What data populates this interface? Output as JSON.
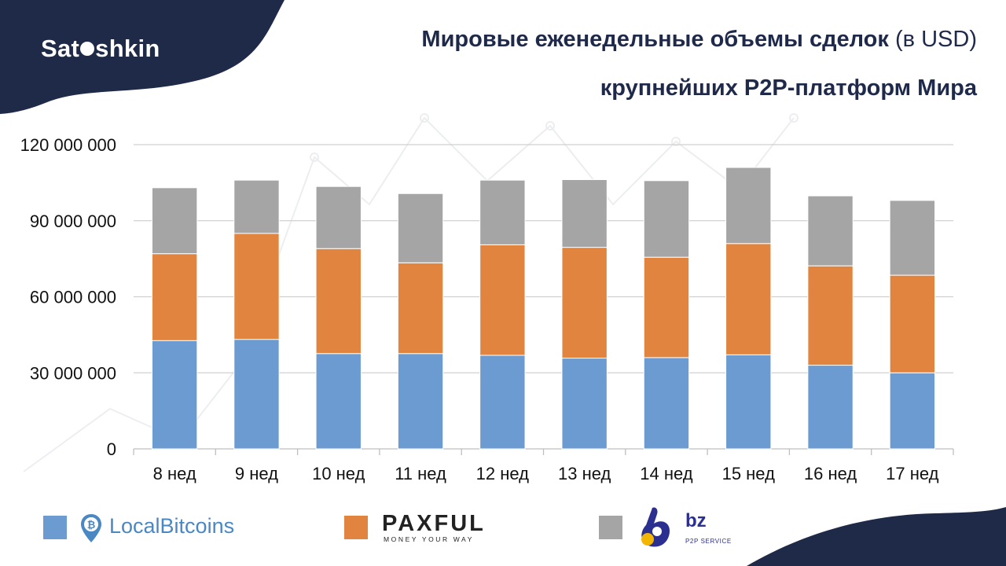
{
  "brand": {
    "text_before": "Sat",
    "text_after": "shkin",
    "color_dark": "#1e2a47"
  },
  "title": {
    "main": "Мировые еженедельные объемы сделок",
    "paren": "(в USD)",
    "line2": "крупнейших P2P-платформ Мира"
  },
  "legend": [
    {
      "color": "#6b9bd1",
      "label": "LocalBitcoins",
      "icon": "bitcoin-pin-icon"
    },
    {
      "color": "#e0843f",
      "label": "PAXFUL",
      "sub": "MONEY YOUR WAY",
      "icon": "paxful-logo"
    },
    {
      "color": "#a5a5a5",
      "label": "bz",
      "sub": "P2P SERVICE",
      "icon": "ok-hand-icon"
    }
  ],
  "chart_data": {
    "type": "bar",
    "stacked": true,
    "categories": [
      "8 нед",
      "9 нед",
      "10 нед",
      "11 нед",
      "12 нед",
      "13 нед",
      "14 нед",
      "15 нед",
      "16 нед",
      "17 нед"
    ],
    "series": [
      {
        "name": "LocalBitcoins",
        "color": "#6b9bd1",
        "values": [
          42700000,
          43200000,
          37600000,
          37600000,
          36900000,
          35800000,
          36000000,
          37100000,
          33000000,
          30000000
        ]
      },
      {
        "name": "PAXFUL",
        "color": "#e0843f",
        "values": [
          34300000,
          41800000,
          41400000,
          35800000,
          43600000,
          43700000,
          39600000,
          43900000,
          39200000,
          38500000
        ]
      },
      {
        "name": "bz",
        "color": "#a5a5a5",
        "values": [
          26000000,
          21000000,
          24500000,
          27300000,
          25500000,
          26700000,
          30200000,
          30000000,
          27600000,
          29500000
        ]
      }
    ],
    "ylim": [
      0,
      120000000
    ],
    "yticks": [
      0,
      30000000,
      60000000,
      90000000,
      120000000
    ],
    "ytick_labels": [
      "0",
      "30 000 000",
      "60 000 000",
      "90 000 000",
      "120 000 000"
    ],
    "grid": true,
    "legend_position": "bottom"
  }
}
